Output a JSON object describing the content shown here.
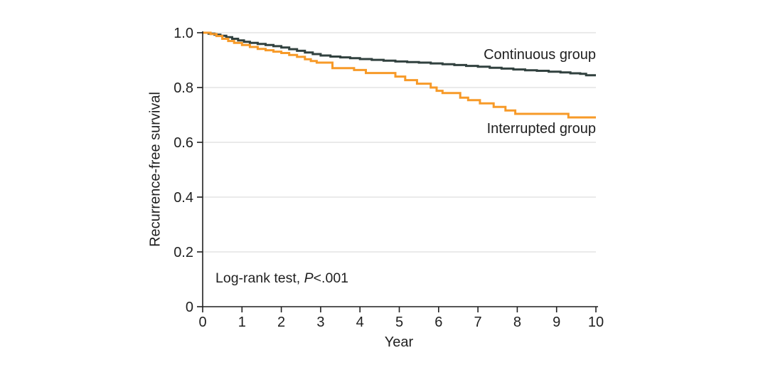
{
  "chart_data": {
    "type": "line",
    "subtype": "kaplan-meier-step",
    "xlabel": "Year",
    "ylabel": "Recurrence-free survival",
    "xlim": [
      0,
      10
    ],
    "ylim": [
      0,
      1.0
    ],
    "x_ticks": [
      0,
      1,
      2,
      3,
      4,
      5,
      6,
      7,
      8,
      9,
      10
    ],
    "y_ticks": [
      1.0,
      0.8,
      0.6,
      0.4,
      0.2,
      0
    ],
    "y_tick_labels": [
      "1.0",
      "0.8",
      "0.6",
      "0.4",
      "0.2",
      "0"
    ],
    "grid": "horizontal",
    "legend_position": "inline-right",
    "annotation": {
      "prefix": "Log-rank test, ",
      "italic": "P",
      "suffix": "<.001"
    },
    "colors": {
      "grid": "#dddddd",
      "axis": "#1f1f1f",
      "text": "#1f1f1f",
      "background": "#ffffff"
    },
    "series": [
      {
        "name": "Continuous group",
        "color": "#31413f",
        "points": [
          [
            0,
            1.0
          ],
          [
            0.15,
            0.997
          ],
          [
            0.3,
            0.993
          ],
          [
            0.45,
            0.989
          ],
          [
            0.6,
            0.984
          ],
          [
            0.75,
            0.978
          ],
          [
            0.9,
            0.972
          ],
          [
            1.05,
            0.967
          ],
          [
            1.2,
            0.963
          ],
          [
            1.4,
            0.959
          ],
          [
            1.6,
            0.955
          ],
          [
            1.8,
            0.951
          ],
          [
            2.0,
            0.946
          ],
          [
            2.2,
            0.94
          ],
          [
            2.4,
            0.934
          ],
          [
            2.6,
            0.928
          ],
          [
            2.8,
            0.922
          ],
          [
            3.0,
            0.917
          ],
          [
            3.25,
            0.913
          ],
          [
            3.5,
            0.91
          ],
          [
            3.75,
            0.907
          ],
          [
            4.0,
            0.904
          ],
          [
            4.3,
            0.901
          ],
          [
            4.6,
            0.898
          ],
          [
            4.9,
            0.895
          ],
          [
            5.2,
            0.893
          ],
          [
            5.5,
            0.891
          ],
          [
            5.8,
            0.888
          ],
          [
            6.1,
            0.885
          ],
          [
            6.4,
            0.882
          ],
          [
            6.7,
            0.879
          ],
          [
            7.0,
            0.876
          ],
          [
            7.3,
            0.872
          ],
          [
            7.6,
            0.869
          ],
          [
            7.9,
            0.866
          ],
          [
            8.2,
            0.863
          ],
          [
            8.5,
            0.861
          ],
          [
            8.8,
            0.858
          ],
          [
            9.1,
            0.855
          ],
          [
            9.35,
            0.852
          ],
          [
            9.6,
            0.85
          ],
          [
            9.75,
            0.845
          ],
          [
            10,
            0.845
          ]
        ]
      },
      {
        "name": "Interrupted group",
        "color": "#f79a28",
        "points": [
          [
            0,
            1.0
          ],
          [
            0.2,
            0.995
          ],
          [
            0.35,
            0.988
          ],
          [
            0.5,
            0.978
          ],
          [
            0.65,
            0.97
          ],
          [
            0.8,
            0.963
          ],
          [
            1.0,
            0.955
          ],
          [
            1.2,
            0.948
          ],
          [
            1.4,
            0.941
          ],
          [
            1.6,
            0.936
          ],
          [
            1.8,
            0.931
          ],
          [
            2.0,
            0.926
          ],
          [
            2.2,
            0.919
          ],
          [
            2.4,
            0.912
          ],
          [
            2.6,
            0.903
          ],
          [
            2.75,
            0.897
          ],
          [
            2.9,
            0.891
          ],
          [
            3.3,
            0.871
          ],
          [
            3.85,
            0.864
          ],
          [
            4.15,
            0.853
          ],
          [
            4.9,
            0.84
          ],
          [
            5.15,
            0.827
          ],
          [
            5.45,
            0.814
          ],
          [
            5.8,
            0.8
          ],
          [
            5.95,
            0.788
          ],
          [
            6.1,
            0.78
          ],
          [
            6.55,
            0.763
          ],
          [
            6.75,
            0.754
          ],
          [
            7.05,
            0.742
          ],
          [
            7.4,
            0.729
          ],
          [
            7.7,
            0.716
          ],
          [
            7.95,
            0.704
          ],
          [
            9.3,
            0.691
          ],
          [
            10,
            0.691
          ]
        ]
      }
    ]
  }
}
